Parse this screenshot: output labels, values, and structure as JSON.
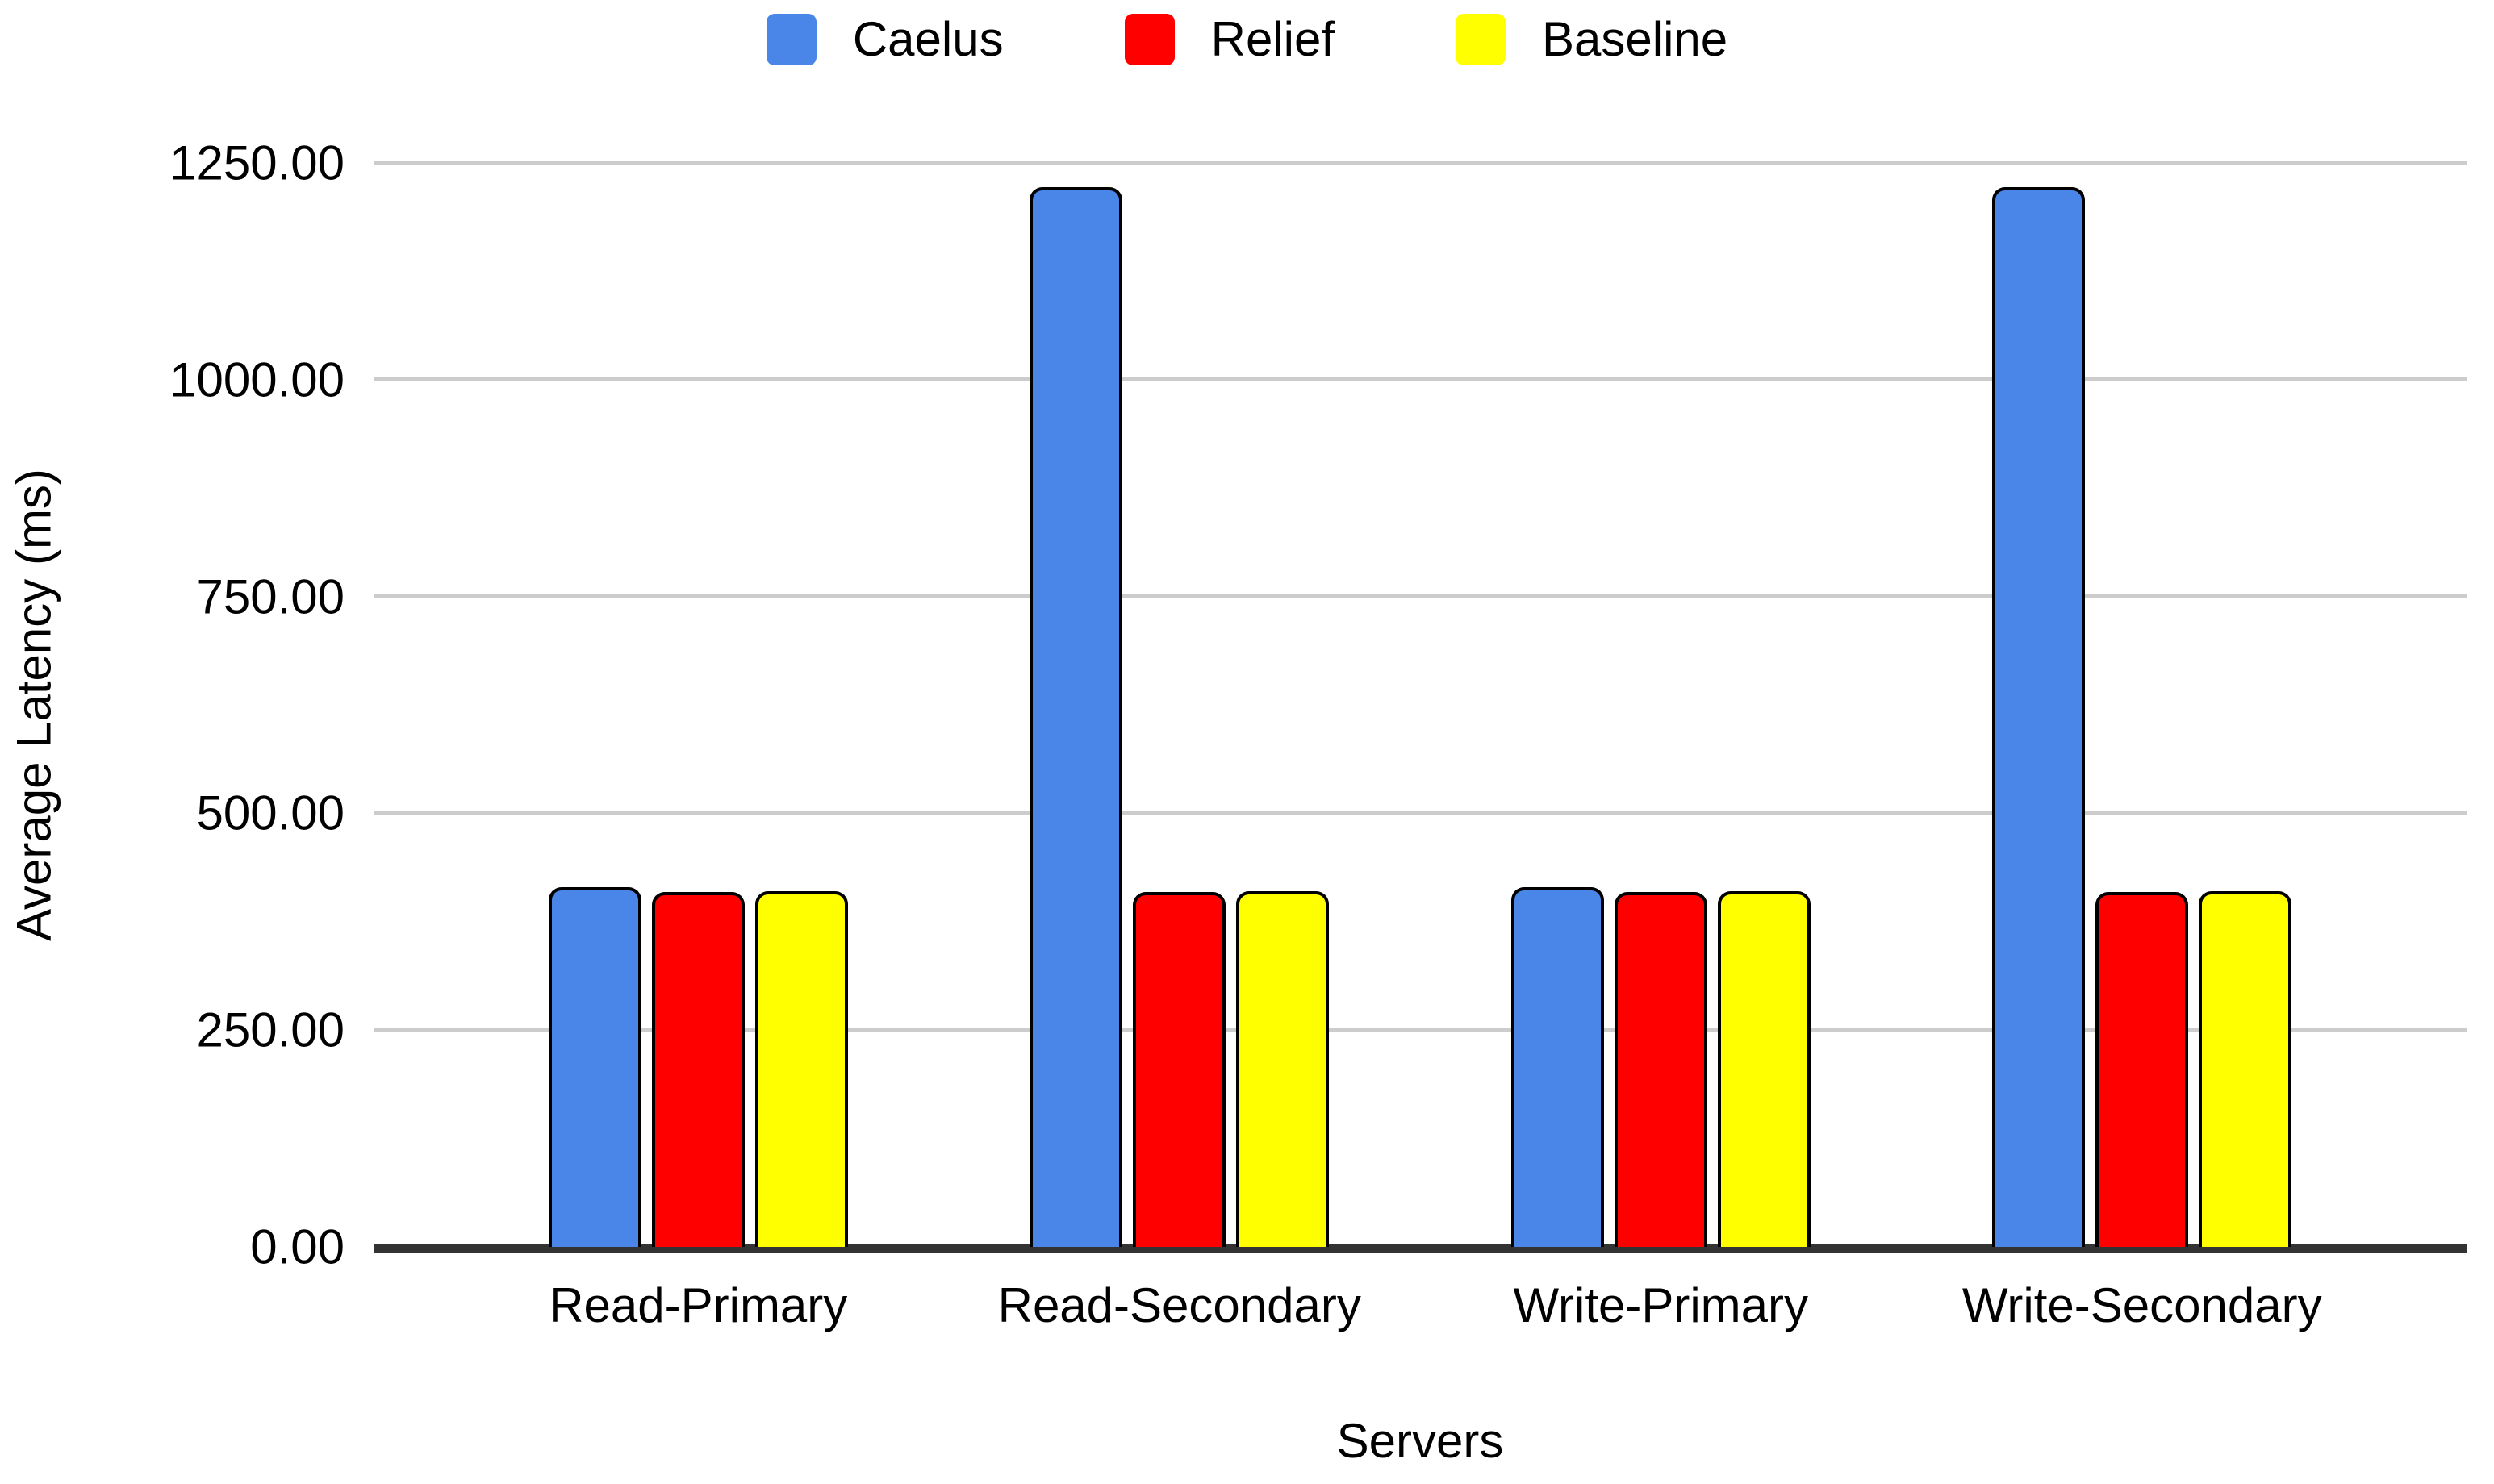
{
  "chart_data": {
    "type": "bar",
    "title": "",
    "xlabel": "Servers",
    "ylabel": "Average Latency (ms)",
    "categories": [
      "Read-Primary",
      "Read-Secondary",
      "Write-Primary",
      "Write-Secondary"
    ],
    "series": [
      {
        "name": "Caelus",
        "color": "#4a85e8",
        "values": [
          415,
          1222,
          415,
          1222
        ]
      },
      {
        "name": "Relief",
        "color": "#ff0000",
        "values": [
          409,
          409,
          409,
          409
        ]
      },
      {
        "name": "Baseline",
        "color": "#ffff00",
        "values": [
          410,
          410,
          410,
          410
        ]
      }
    ],
    "ylim": [
      0,
      1250
    ],
    "ytick_step": 250,
    "ytick_labels": [
      "0.00",
      "250.00",
      "500.00",
      "750.00",
      "1000.00",
      "1250.00"
    ],
    "grid": true,
    "legend_position": "top"
  },
  "colors": {
    "background": "#ffffff",
    "gridline": "#cccccc",
    "axis_line": "#333333",
    "bar_border": "#000000",
    "text": "#000000"
  }
}
